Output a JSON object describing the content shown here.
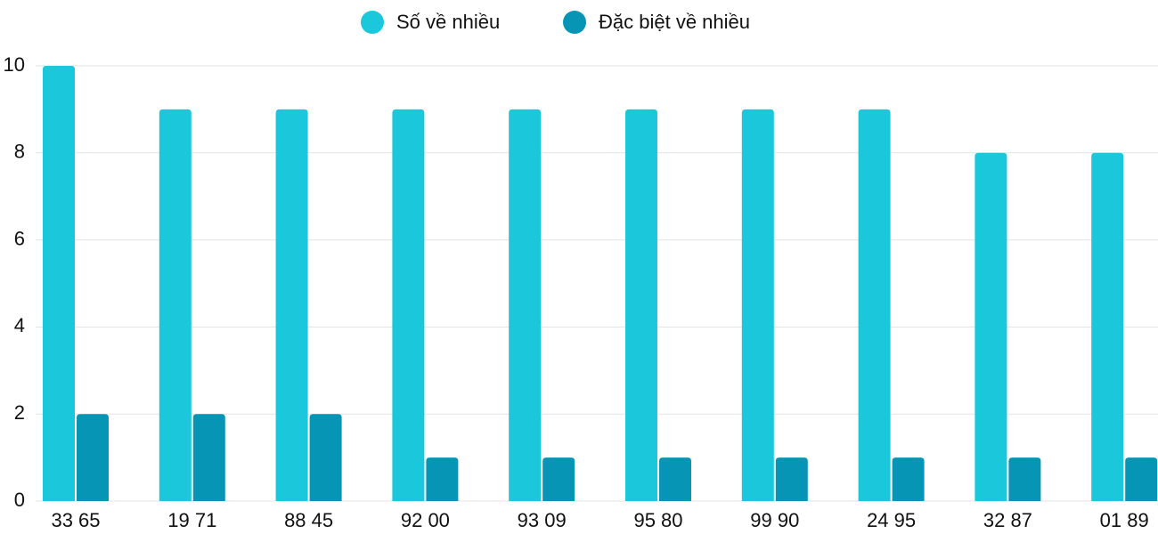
{
  "chart_data": {
    "type": "bar",
    "categories": [
      "33 65",
      "19 71",
      "88 45",
      "92 00",
      "93 09",
      "95 80",
      "99 90",
      "24 95",
      "32 87",
      "01 89"
    ],
    "series": [
      {
        "name": "Số về nhiều",
        "color": "#1bc7db",
        "values": [
          10,
          9,
          9,
          9,
          9,
          9,
          9,
          9,
          8,
          8
        ]
      },
      {
        "name": "Đặc biệt về nhiều",
        "color": "#0795b6",
        "values": [
          2,
          2,
          2,
          1,
          1,
          1,
          1,
          1,
          1,
          1
        ]
      }
    ],
    "ylim": [
      0,
      10
    ],
    "yticks": [
      0,
      2,
      4,
      6,
      8,
      10
    ],
    "grid": true,
    "legend": "top"
  }
}
